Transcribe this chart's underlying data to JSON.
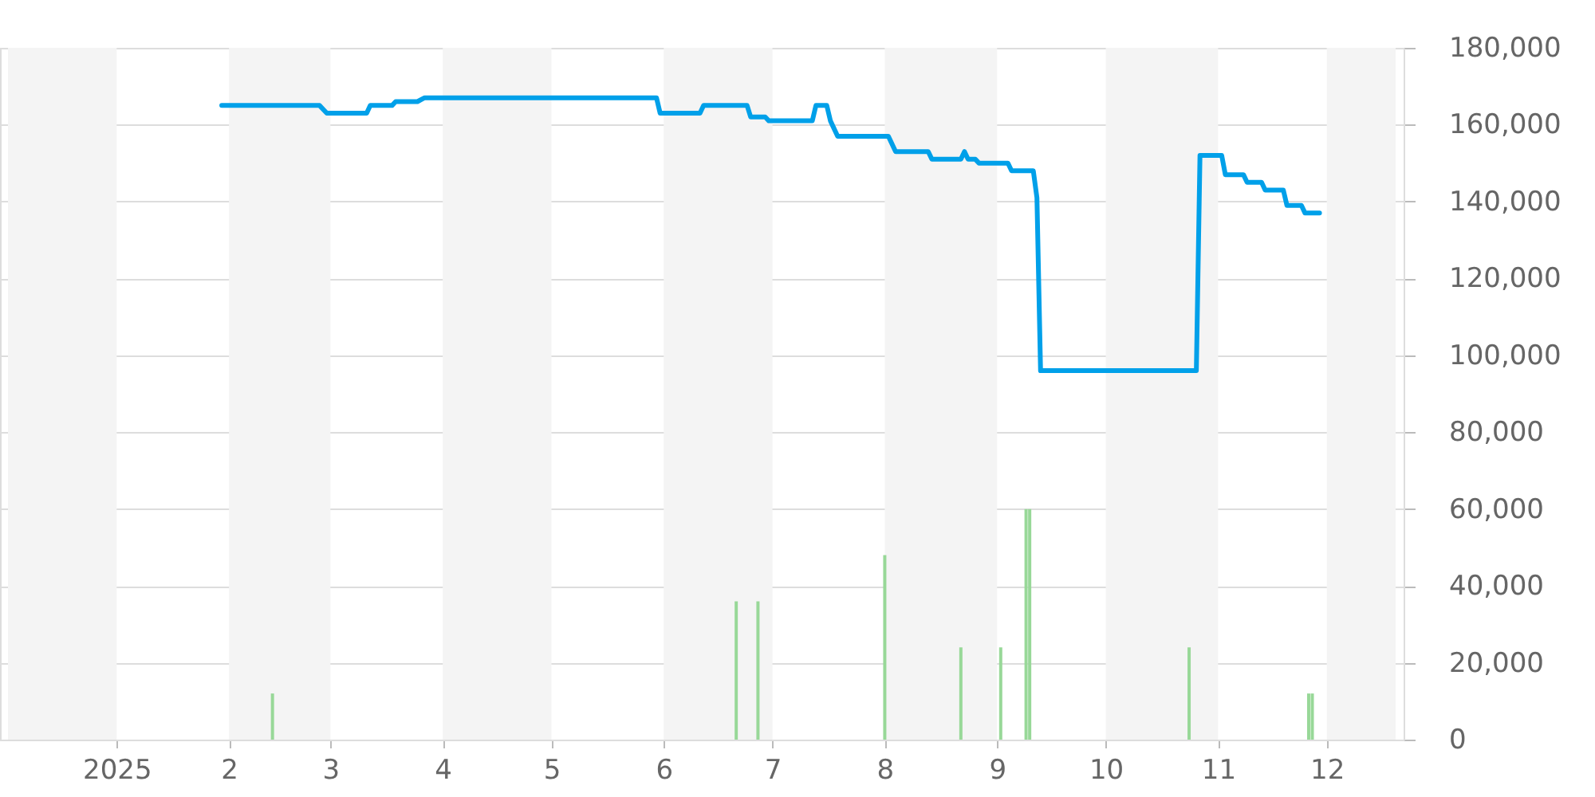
{
  "chart_data": {
    "type": "line",
    "xlim": [
      "2024-12-02",
      "2025-12-20"
    ],
    "xticks": [
      {
        "value": "2025-01-01",
        "label": "2025"
      },
      {
        "value": "2025-02-01",
        "label": "2"
      },
      {
        "value": "2025-03-01",
        "label": "3"
      },
      {
        "value": "2025-04-01",
        "label": "4"
      },
      {
        "value": "2025-05-01",
        "label": "5"
      },
      {
        "value": "2025-06-01",
        "label": "6"
      },
      {
        "value": "2025-07-01",
        "label": "7"
      },
      {
        "value": "2025-08-01",
        "label": "8"
      },
      {
        "value": "2025-09-01",
        "label": "9"
      },
      {
        "value": "2025-10-01",
        "label": "10"
      },
      {
        "value": "2025-11-01",
        "label": "11"
      },
      {
        "value": "2025-12-01",
        "label": "12"
      }
    ],
    "ylim": [
      0,
      180000
    ],
    "yticks": [
      0,
      {
        "value": 20000,
        "label": "20,000"
      },
      {
        "value": 40000,
        "label": "40,000"
      },
      {
        "value": 60000,
        "label": "60,000"
      },
      {
        "value": 80000,
        "label": "80,000"
      },
      {
        "value": 100000,
        "label": "100,000"
      },
      {
        "value": 120000,
        "label": "120,000"
      },
      {
        "value": 140000,
        "label": "140,000"
      },
      {
        "value": 160000,
        "label": "160,000"
      },
      {
        "value": 180000,
        "label": "180,000"
      }
    ],
    "grid": "y",
    "bands": [
      {
        "axis": "x",
        "from": "2024-12-02",
        "to": "2025-01-01",
        "color": "#f4f4f4"
      },
      {
        "axis": "x",
        "from": "2025-02-01",
        "to": "2025-03-01",
        "color": "#f4f4f4"
      },
      {
        "axis": "x",
        "from": "2025-04-01",
        "to": "2025-05-01",
        "color": "#f4f4f4"
      },
      {
        "axis": "x",
        "from": "2025-06-01",
        "to": "2025-07-01",
        "color": "#f4f4f4"
      },
      {
        "axis": "x",
        "from": "2025-08-01",
        "to": "2025-09-01",
        "color": "#f4f4f4"
      },
      {
        "axis": "x",
        "from": "2025-10-01",
        "to": "2025-11-01",
        "color": "#f4f4f4"
      },
      {
        "axis": "x",
        "from": "2025-12-01",
        "to": "2025-12-20",
        "color": "#f4f4f4"
      }
    ],
    "series": [
      {
        "type": "bar",
        "color": "#98d898",
        "x": [
          "2025-02-13",
          "2025-06-21",
          "2025-06-27",
          "2025-08-01",
          "2025-08-22",
          "2025-09-02",
          "2025-09-09",
          "2025-09-10",
          "2025-10-24",
          "2025-11-26",
          "2025-11-27"
        ],
        "values": [
          12000,
          36000,
          36000,
          48000,
          24000,
          24000,
          60000,
          60000,
          24000,
          12000,
          12000
        ]
      },
      {
        "color": "#00a0e9",
        "x": [
          "2025-01-30",
          "2025-02-26",
          "2025-02-28",
          "2025-03-11",
          "2025-03-12",
          "2025-03-18",
          "2025-03-19",
          "2025-03-25",
          "2025-03-27",
          "2025-05-30",
          "2025-05-31",
          "2025-06-11",
          "2025-06-12",
          "2025-06-24",
          "2025-06-25",
          "2025-06-29",
          "2025-06-30",
          "2025-07-12",
          "2025-07-13",
          "2025-07-16",
          "2025-07-17",
          "2025-07-19",
          "2025-08-02",
          "2025-08-04",
          "2025-08-13",
          "2025-08-14",
          "2025-08-22",
          "2025-08-23",
          "2025-08-24",
          "2025-08-26",
          "2025-08-27",
          "2025-09-04",
          "2025-09-05",
          "2025-09-11",
          "2025-09-12",
          "2025-09-13",
          "2025-10-26",
          "2025-10-27",
          "2025-11-02",
          "2025-11-03",
          "2025-11-08",
          "2025-11-09",
          "2025-11-13",
          "2025-11-14",
          "2025-11-19",
          "2025-11-20",
          "2025-11-24",
          "2025-11-25",
          "2025-11-29"
        ],
        "values": [
          165000,
          165000,
          163000,
          163000,
          165000,
          165000,
          166000,
          166000,
          167000,
          167000,
          163000,
          163000,
          165000,
          165000,
          162000,
          162000,
          161000,
          161000,
          165000,
          165000,
          161000,
          157000,
          157000,
          153000,
          153000,
          151000,
          151000,
          153000,
          151000,
          151000,
          150000,
          150000,
          148000,
          148000,
          141000,
          96000,
          96000,
          152000,
          152000,
          147000,
          147000,
          145000,
          145000,
          143000,
          143000,
          139000,
          139000,
          137000,
          137000
        ]
      }
    ]
  }
}
